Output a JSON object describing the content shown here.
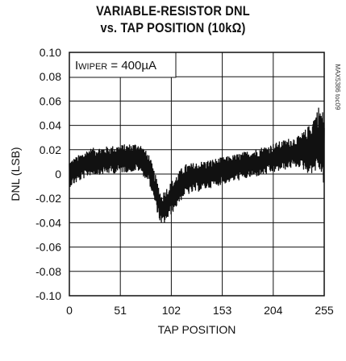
{
  "chart_data": {
    "type": "line",
    "title_lines": [
      "VARIABLE-RESISTOR DNL",
      "vs. TAP POSITION (10kΩ)"
    ],
    "xlabel": "TAP POSITION",
    "ylabel": "DNL (LSB)",
    "xlim": [
      0,
      255
    ],
    "ylim": [
      -0.1,
      0.1
    ],
    "x_ticks": [
      0,
      51,
      102,
      153,
      204,
      255
    ],
    "y_ticks": [
      0.1,
      0.08,
      0.06,
      0.04,
      0.02,
      0,
      -0.02,
      -0.04,
      -0.06,
      -0.08,
      -0.1
    ],
    "x_tick_labels": [
      "0",
      "51",
      "102",
      "153",
      "204",
      "255"
    ],
    "y_tick_labels": [
      "0.10",
      "0.08",
      "0.06",
      "0.04",
      "0.02",
      "0",
      "-0.02",
      "-0.04",
      "-0.06",
      "-0.08",
      "-0.10"
    ],
    "grid": true,
    "annotation": {
      "label_main": "I",
      "label_sub": "WIPER",
      "label_value": " = 400µA"
    },
    "side_code": "MAX5386 toc09",
    "series": [
      {
        "color": "#111111",
        "trend": [
          {
            "x": 0,
            "y": 0.0
          },
          {
            "x": 20,
            "y": 0.01
          },
          {
            "x": 45,
            "y": 0.012
          },
          {
            "x": 70,
            "y": 0.014
          },
          {
            "x": 80,
            "y": 0.004
          },
          {
            "x": 92,
            "y": -0.03
          },
          {
            "x": 100,
            "y": -0.022
          },
          {
            "x": 115,
            "y": -0.005
          },
          {
            "x": 140,
            "y": 0.0
          },
          {
            "x": 170,
            "y": 0.006
          },
          {
            "x": 200,
            "y": 0.012
          },
          {
            "x": 220,
            "y": 0.017
          },
          {
            "x": 240,
            "y": 0.02
          },
          {
            "x": 250,
            "y": 0.03
          },
          {
            "x": 255,
            "y": 0.02
          }
        ],
        "noise_amplitude": [
          {
            "x": 0,
            "a": 0.011
          },
          {
            "x": 80,
            "a": 0.012
          },
          {
            "x": 95,
            "a": 0.014
          },
          {
            "x": 160,
            "a": 0.011
          },
          {
            "x": 230,
            "a": 0.013
          },
          {
            "x": 245,
            "a": 0.024
          },
          {
            "x": 255,
            "a": 0.03
          }
        ]
      }
    ]
  }
}
